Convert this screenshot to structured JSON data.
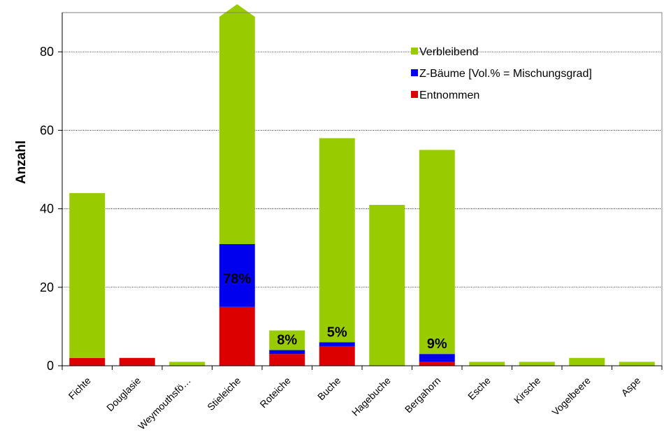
{
  "chart_data": {
    "type": "bar",
    "stacked": true,
    "ylabel": "Anzahl",
    "xlabel": "",
    "ylim": [
      0,
      90
    ],
    "yticks": [
      0,
      20,
      40,
      60,
      80
    ],
    "grid": true,
    "legend_position": "top-right",
    "categories": [
      "Fichte",
      "Douglasie",
      "Weymouthsfö…",
      "Stieleiche",
      "Roteiche",
      "Buche",
      "Hagebuche",
      "Bergahorn",
      "Esche",
      "Kirsche",
      "Vogelbeere",
      "Aspe"
    ],
    "legend_order": [
      "Verbleibend",
      "Z-Bäume [Vol.% = Mischungsgrad]",
      "Entnommen"
    ],
    "series": [
      {
        "name": "Entnommen",
        "color": "#dd0000",
        "values": [
          2,
          2,
          0,
          15,
          3,
          5,
          0,
          1,
          0,
          0,
          0,
          0
        ]
      },
      {
        "name": "Z-Bäume [Vol.% = Mischungsgrad]",
        "color": "#0000ee",
        "values": [
          0,
          0,
          0,
          16,
          1,
          1,
          0,
          2,
          0,
          0,
          0,
          0
        ]
      },
      {
        "name": "Verbleibend",
        "color": "#99cc00",
        "values": [
          42,
          0,
          1,
          57,
          5,
          52,
          41,
          52,
          1,
          1,
          2,
          1
        ]
      }
    ],
    "truncated_value_indicator": {
      "category": "Stieleiche",
      "note": "bar extends beyond axis"
    },
    "annotations": [
      {
        "category": "Stieleiche",
        "text": "78%"
      },
      {
        "category": "Roteiche",
        "text": "8%"
      },
      {
        "category": "Buche",
        "text": "5%"
      },
      {
        "category": "Bergahorn",
        "text": "9%"
      }
    ]
  }
}
